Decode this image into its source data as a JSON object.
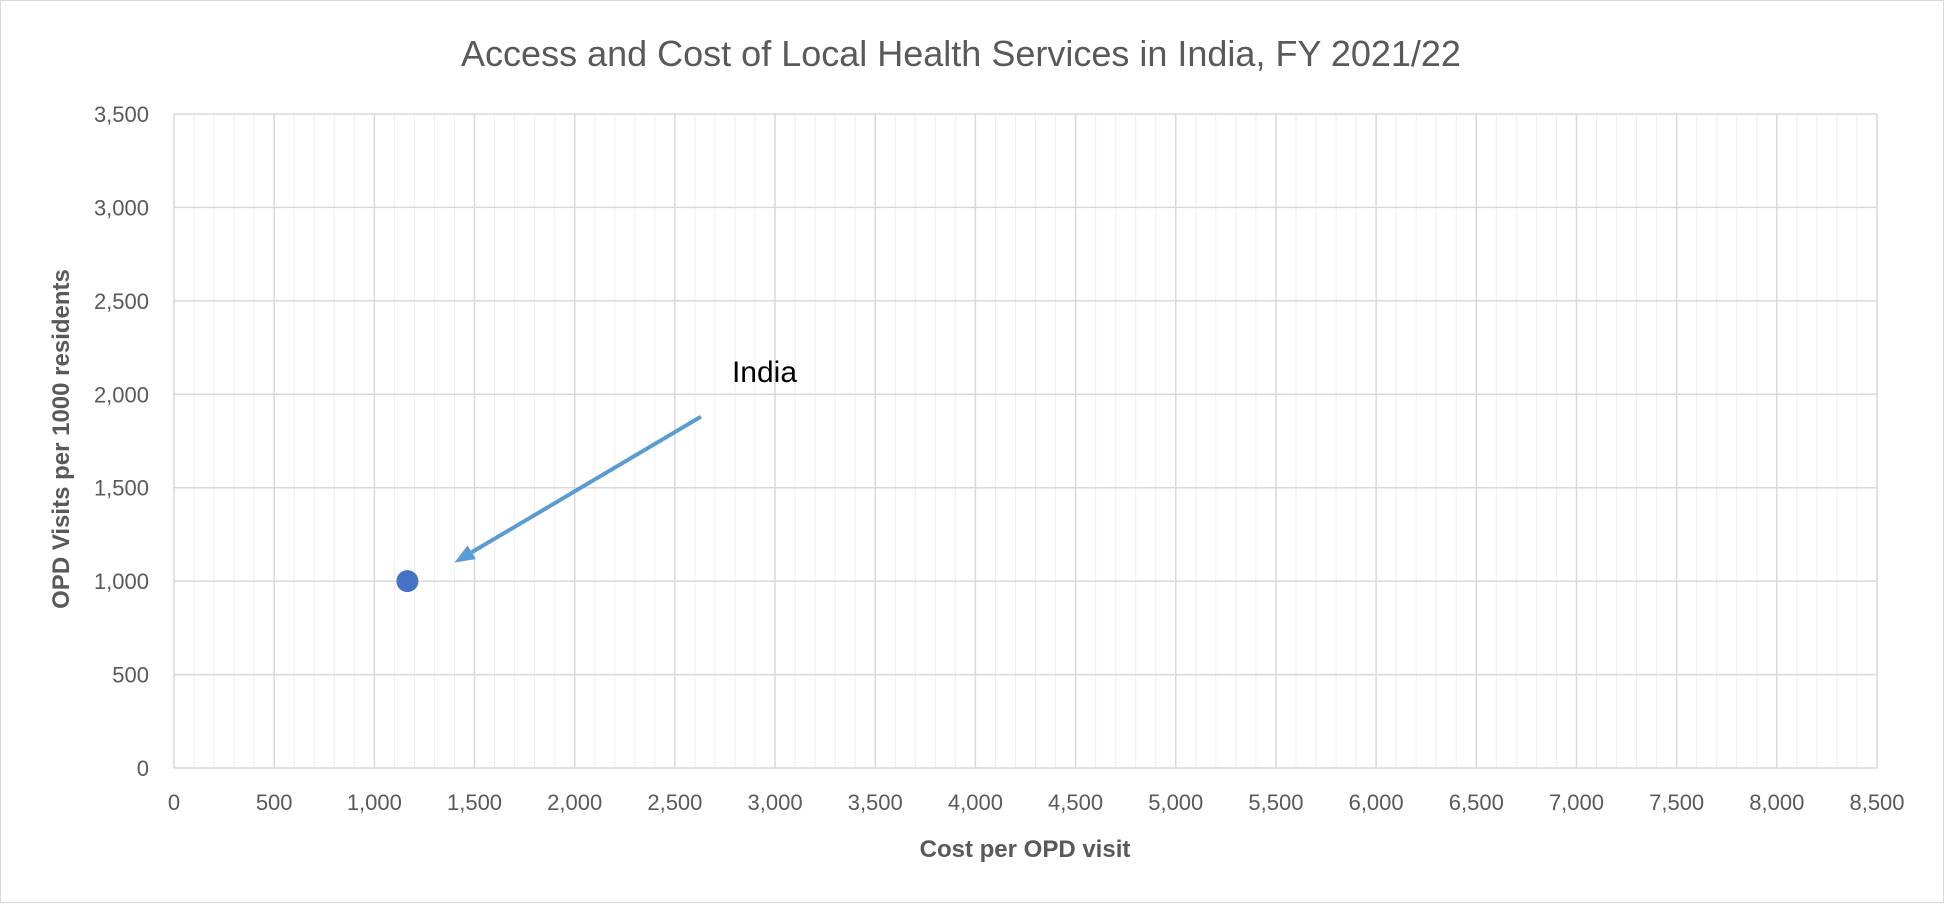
{
  "chart_data": {
    "type": "scatter",
    "title": "Access and Cost of Local Health Services in India, FY 2021/22",
    "xlabel": "Cost per OPD visit",
    "ylabel": "OPD Visits per 1000 residents",
    "xlim": [
      0,
      8500
    ],
    "ylim": [
      0,
      3500
    ],
    "x_ticks": [
      0,
      500,
      1000,
      1500,
      2000,
      2500,
      3000,
      3500,
      4000,
      4500,
      5000,
      5500,
      6000,
      6500,
      7000,
      7500,
      8000,
      8500
    ],
    "y_ticks": [
      0,
      500,
      1000,
      1500,
      2000,
      2500,
      3000,
      3500
    ],
    "x_tick_labels": [
      "0",
      "500",
      "1,000",
      "1,500",
      "2,000",
      "2,500",
      "3,000",
      "3,500",
      "4,000",
      "4,500",
      "5,000",
      "5,500",
      "6,000",
      "6,500",
      "7,000",
      "7,500",
      "8,000",
      "8,500"
    ],
    "y_tick_labels": [
      "0",
      "500",
      "1,000",
      "1,500",
      "2,000",
      "2,500",
      "3,000",
      "3,500"
    ],
    "x_minor_step": 100,
    "grid": true,
    "series": [
      {
        "points": [
          {
            "x": 1165,
            "y": 1000
          }
        ],
        "color": "#4472c4"
      }
    ],
    "annotations": [
      {
        "text": "India",
        "text_at": {
          "x": 2785,
          "y": 2065
        },
        "arrow_from": {
          "x": 2630,
          "y": 1880
        },
        "arrow_to": {
          "x": 1400,
          "y": 1100
        },
        "color": "#5b9bd5"
      }
    ]
  }
}
